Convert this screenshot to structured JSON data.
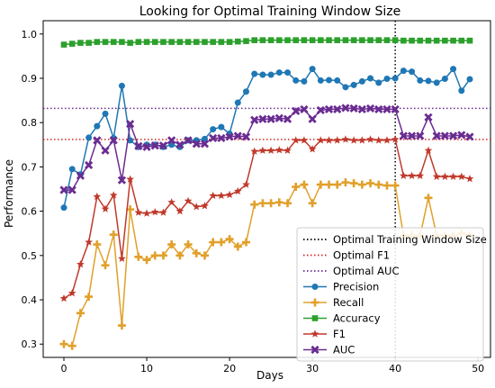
{
  "chart_data": {
    "type": "line",
    "title": "Looking for Optimal Training Window Size",
    "xlabel": "Days",
    "ylabel": "Performance",
    "xlim": [
      -2.5,
      51.5
    ],
    "ylim": [
      0.27,
      1.03
    ],
    "xticks": [
      0,
      10,
      20,
      30,
      40,
      50
    ],
    "yticks": [
      0.3,
      0.4,
      0.5,
      0.6,
      0.7,
      0.8,
      0.9,
      1.0
    ],
    "legend_position": "lower-right",
    "series": [
      {
        "name": "Precision",
        "color": "#1f77b4",
        "marker": "circle",
        "values": [
          0.608,
          0.695,
          0.683,
          0.766,
          0.792,
          0.82,
          0.765,
          0.883,
          0.76,
          0.745,
          0.75,
          0.75,
          0.745,
          0.75,
          0.745,
          0.76,
          0.76,
          0.763,
          0.785,
          0.79,
          0.775,
          0.845,
          0.87,
          0.91,
          0.908,
          0.908,
          0.913,
          0.913,
          0.895,
          0.893,
          0.921,
          0.895,
          0.896,
          0.895,
          0.88,
          0.885,
          0.893,
          0.9,
          0.89,
          0.899,
          0.9,
          0.917,
          0.915,
          0.895,
          0.894,
          0.89,
          0.899,
          0.921,
          0.872,
          0.898
        ]
      },
      {
        "name": "Recall",
        "color": "#e1a02a",
        "marker": "plus",
        "values": [
          0.3,
          0.296,
          0.37,
          0.407,
          0.525,
          0.478,
          0.547,
          0.342,
          0.604,
          0.497,
          0.49,
          0.5,
          0.5,
          0.525,
          0.5,
          0.525,
          0.505,
          0.5,
          0.53,
          0.53,
          0.537,
          0.52,
          0.53,
          0.615,
          0.618,
          0.618,
          0.62,
          0.618,
          0.655,
          0.66,
          0.618,
          0.66,
          0.66,
          0.66,
          0.665,
          0.663,
          0.66,
          0.663,
          0.66,
          0.658,
          0.658,
          0.545,
          0.545,
          0.545,
          0.63,
          0.545,
          0.545,
          0.545,
          0.55,
          0.545
        ]
      },
      {
        "name": "Accuracy",
        "color": "#2ca02c",
        "marker": "square",
        "values": [
          0.976,
          0.978,
          0.98,
          0.98,
          0.982,
          0.982,
          0.982,
          0.982,
          0.98,
          0.982,
          0.982,
          0.982,
          0.982,
          0.982,
          0.982,
          0.982,
          0.982,
          0.982,
          0.982,
          0.982,
          0.982,
          0.983,
          0.984,
          0.986,
          0.986,
          0.986,
          0.986,
          0.986,
          0.986,
          0.986,
          0.986,
          0.986,
          0.986,
          0.986,
          0.986,
          0.986,
          0.986,
          0.986,
          0.986,
          0.986,
          0.986,
          0.985,
          0.985,
          0.985,
          0.985,
          0.985,
          0.985,
          0.985,
          0.985,
          0.985
        ]
      },
      {
        "name": "F1",
        "color": "#c0392b",
        "marker": "star",
        "values": [
          0.403,
          0.415,
          0.48,
          0.53,
          0.633,
          0.605,
          0.636,
          0.493,
          0.672,
          0.597,
          0.595,
          0.598,
          0.597,
          0.62,
          0.6,
          0.623,
          0.61,
          0.612,
          0.635,
          0.635,
          0.637,
          0.645,
          0.66,
          0.735,
          0.737,
          0.737,
          0.738,
          0.737,
          0.76,
          0.76,
          0.74,
          0.76,
          0.76,
          0.76,
          0.762,
          0.76,
          0.76,
          0.762,
          0.76,
          0.76,
          0.762,
          0.68,
          0.68,
          0.68,
          0.737,
          0.678,
          0.678,
          0.678,
          0.678,
          0.673
        ]
      },
      {
        "name": "AUC",
        "color": "#6a2c91",
        "marker": "x",
        "values": [
          0.648,
          0.648,
          0.68,
          0.704,
          0.76,
          0.737,
          0.76,
          0.67,
          0.797,
          0.747,
          0.745,
          0.748,
          0.748,
          0.76,
          0.75,
          0.76,
          0.752,
          0.752,
          0.765,
          0.765,
          0.768,
          0.77,
          0.768,
          0.806,
          0.808,
          0.808,
          0.81,
          0.808,
          0.826,
          0.83,
          0.808,
          0.828,
          0.83,
          0.83,
          0.833,
          0.832,
          0.83,
          0.832,
          0.83,
          0.83,
          0.83,
          0.77,
          0.77,
          0.77,
          0.812,
          0.77,
          0.77,
          0.77,
          0.772,
          0.768
        ]
      }
    ],
    "reference_lines": [
      {
        "name": "Optimal Training Window Size",
        "orientation": "vertical",
        "value": 40,
        "color": "#000000",
        "style": "dotted"
      },
      {
        "name": "Optimal F1",
        "orientation": "horizontal",
        "value": 0.762,
        "color": "#d62728",
        "style": "dotted"
      },
      {
        "name": "Optimal AUC",
        "orientation": "horizontal",
        "value": 0.832,
        "color": "#6a2c91",
        "style": "dotted"
      }
    ],
    "legend_order": [
      "Optimal Training Window Size",
      "Optimal F1",
      "Optimal AUC",
      "Precision",
      "Recall",
      "Accuracy",
      "F1",
      "AUC"
    ]
  }
}
